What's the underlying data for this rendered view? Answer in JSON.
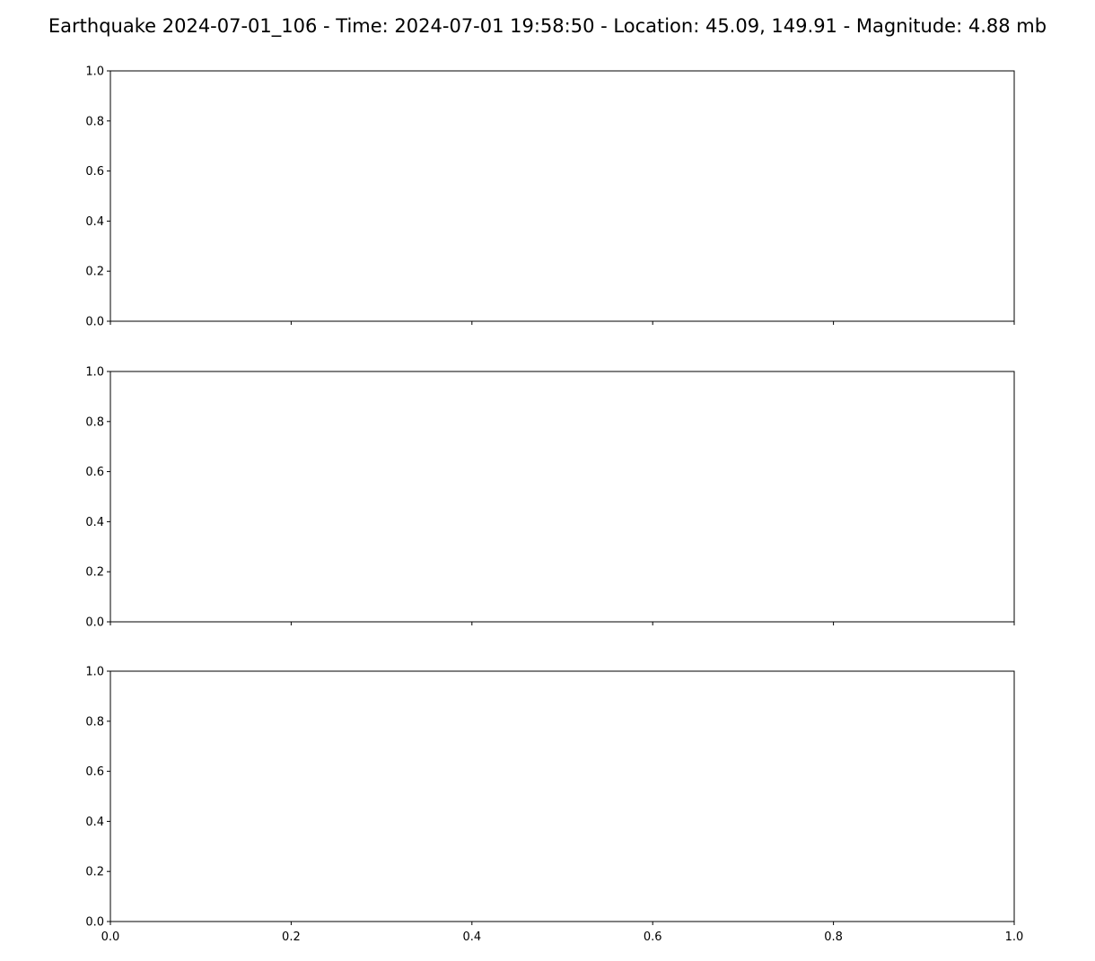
{
  "figure": {
    "title": "Earthquake 2024-07-01_106 - Time: 2024-07-01 19:58:50 - Location: 45.09, 149.91 - Magnitude: 4.88 mb",
    "background": "#ffffff",
    "axis_color": "#000000"
  },
  "chart_data": [
    {
      "type": "line",
      "title": "",
      "xlabel": "",
      "ylabel": "",
      "series": [],
      "xlim": [
        0.0,
        1.0
      ],
      "ylim": [
        0.0,
        1.0
      ],
      "xticks": [
        "0.0",
        "0.2",
        "0.4",
        "0.6",
        "0.8",
        "1.0"
      ],
      "yticks": [
        "0.0",
        "0.2",
        "0.4",
        "0.6",
        "0.8",
        "1.0"
      ],
      "show_xtick_labels": false,
      "grid": false
    },
    {
      "type": "line",
      "title": "",
      "xlabel": "",
      "ylabel": "",
      "series": [],
      "xlim": [
        0.0,
        1.0
      ],
      "ylim": [
        0.0,
        1.0
      ],
      "xticks": [
        "0.0",
        "0.2",
        "0.4",
        "0.6",
        "0.8",
        "1.0"
      ],
      "yticks": [
        "0.0",
        "0.2",
        "0.4",
        "0.6",
        "0.8",
        "1.0"
      ],
      "show_xtick_labels": false,
      "grid": false
    },
    {
      "type": "line",
      "title": "",
      "xlabel": "",
      "ylabel": "",
      "series": [],
      "xlim": [
        0.0,
        1.0
      ],
      "ylim": [
        0.0,
        1.0
      ],
      "xticks": [
        "0.0",
        "0.2",
        "0.4",
        "0.6",
        "0.8",
        "1.0"
      ],
      "yticks": [
        "0.0",
        "0.2",
        "0.4",
        "0.6",
        "0.8",
        "1.0"
      ],
      "show_xtick_labels": true,
      "grid": false
    }
  ]
}
